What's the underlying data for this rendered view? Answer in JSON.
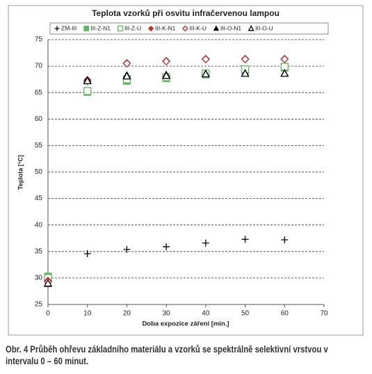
{
  "chart_data": {
    "type": "scatter",
    "title": "Teplota vzorků při osvitu infračervenou lampou",
    "x_label": "Doba expozice záření [min.]",
    "y_label": "Teplota [°C]",
    "x": [
      0,
      10,
      20,
      30,
      40,
      50,
      60
    ],
    "series": [
      {
        "name": "ZM-III",
        "color": "#000000",
        "marker": "plus",
        "values": [
          29.2,
          34.6,
          35.4,
          35.9,
          36.6,
          37.3,
          37.2
        ]
      },
      {
        "name": "III-Z-N1",
        "color": "#5cb85c",
        "marker": "square",
        "values": [
          30.3,
          65.1,
          67.2,
          67.7,
          68.4,
          69.2,
          69.7
        ]
      },
      {
        "name": "III-Z-U",
        "color": "#5cb85c",
        "marker": "square-open",
        "values": [
          30.0,
          65.3,
          67.5,
          67.9,
          68.6,
          69.4,
          69.9
        ]
      },
      {
        "name": "III-K-N1",
        "color": "#c0282d",
        "marker": "diamond",
        "values": [
          29.5,
          67.4,
          70.6,
          71.0,
          71.4,
          71.4,
          71.4
        ]
      },
      {
        "name": "III-K-U",
        "color": "#c0282d",
        "marker": "diamond-open",
        "values": [
          29.3,
          67.2,
          70.5,
          70.9,
          71.3,
          71.3,
          71.3
        ]
      },
      {
        "name": "III-O-N1",
        "color": "#000000",
        "marker": "triangle",
        "values": [
          28.9,
          67.4,
          68.3,
          68.4,
          68.6,
          68.7,
          68.7
        ]
      },
      {
        "name": "III-O-U",
        "color": "#000000",
        "marker": "triangle-open",
        "values": [
          29.0,
          67.2,
          68.1,
          68.2,
          68.5,
          68.6,
          68.6
        ]
      }
    ],
    "xlim": [
      0,
      70
    ],
    "xticks": [
      0,
      10,
      20,
      30,
      40,
      50,
      60,
      70
    ],
    "ylim": [
      25,
      75
    ],
    "yticks": [
      25,
      30,
      35,
      40,
      45,
      50,
      55,
      60,
      65,
      70,
      75
    ],
    "grid": true
  },
  "caption": "Obr. 4 Průběh ohřevu základního materiálu a vzorků se spektrálně selektivní vrstvou v intervalu 0 – 60 minut."
}
